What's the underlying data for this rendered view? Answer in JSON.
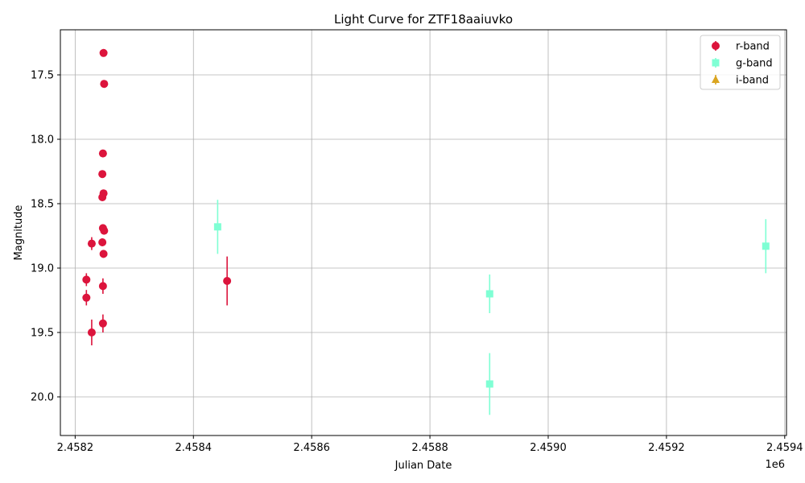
{
  "chart_data": {
    "type": "scatter",
    "title": "Light Curve for ZTF18aaiuvko",
    "xlabel": "Julian Date",
    "ylabel": "Magnitude",
    "x_offset_label": "1e6",
    "xlim": [
      2458175,
      2459403
    ],
    "ylim": [
      20.3,
      17.15
    ],
    "y_inverted": true,
    "grid": true,
    "legend_position": "top-right",
    "x_ticks": [
      {
        "value": 2458200,
        "label": "2.4582"
      },
      {
        "value": 2458400,
        "label": "2.4584"
      },
      {
        "value": 2458600,
        "label": "2.4586"
      },
      {
        "value": 2458800,
        "label": "2.4588"
      },
      {
        "value": 2459000,
        "label": "2.4590"
      },
      {
        "value": 2459200,
        "label": "2.4592"
      },
      {
        "value": 2459400,
        "label": "2.4594"
      }
    ],
    "y_ticks": [
      {
        "value": 17.5,
        "label": "17.5"
      },
      {
        "value": 18.0,
        "label": "18.0"
      },
      {
        "value": 18.5,
        "label": "18.5"
      },
      {
        "value": 19.0,
        "label": "19.0"
      },
      {
        "value": 19.5,
        "label": "19.5"
      },
      {
        "value": 20.0,
        "label": "20.0"
      }
    ],
    "series": [
      {
        "name": "r-band",
        "color": "#dc143c",
        "marker": "circle",
        "points": [
          {
            "x": 2458248.0,
            "y": 17.33,
            "err": 0.0
          },
          {
            "x": 2458249.0,
            "y": 17.57,
            "err": 0.0
          },
          {
            "x": 2458247.0,
            "y": 18.11,
            "err": 0.0
          },
          {
            "x": 2458246.0,
            "y": 18.27,
            "err": 0.0
          },
          {
            "x": 2458248.0,
            "y": 18.42,
            "err": 0.0
          },
          {
            "x": 2458246.0,
            "y": 18.45,
            "err": 0.0
          },
          {
            "x": 2458247.0,
            "y": 18.69,
            "err": 0.03
          },
          {
            "x": 2458249.0,
            "y": 18.71,
            "err": 0.03
          },
          {
            "x": 2458246.0,
            "y": 18.8,
            "err": 0.03
          },
          {
            "x": 2458228.0,
            "y": 18.81,
            "err": 0.05
          },
          {
            "x": 2458248.0,
            "y": 18.89,
            "err": 0.03
          },
          {
            "x": 2458219.0,
            "y": 19.09,
            "err": 0.05
          },
          {
            "x": 2458247.0,
            "y": 19.14,
            "err": 0.06
          },
          {
            "x": 2458219.0,
            "y": 19.23,
            "err": 0.06
          },
          {
            "x": 2458247.0,
            "y": 19.43,
            "err": 0.07
          },
          {
            "x": 2458228.0,
            "y": 19.5,
            "err": 0.1
          },
          {
            "x": 2458457.0,
            "y": 19.1,
            "err": 0.19
          }
        ]
      },
      {
        "name": "g-band",
        "color": "#7fffd4",
        "marker": "square",
        "points": [
          {
            "x": 2458441.0,
            "y": 18.68,
            "err": 0.21
          },
          {
            "x": 2458901.0,
            "y": 19.2,
            "err": 0.15
          },
          {
            "x": 2458901.0,
            "y": 19.9,
            "err": 0.24
          },
          {
            "x": 2459368.0,
            "y": 18.83,
            "err": 0.21
          }
        ]
      },
      {
        "name": "i-band",
        "color": "#daa520",
        "marker": "triangle",
        "points": []
      }
    ]
  }
}
